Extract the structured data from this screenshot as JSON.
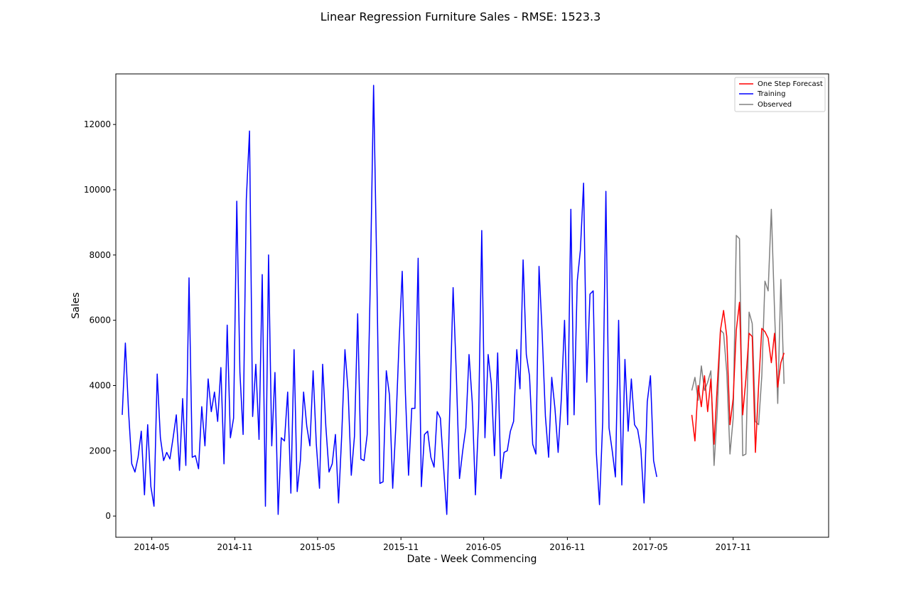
{
  "chart_data": {
    "type": "line",
    "title": "Linear Regression Furniture Sales - RMSE: 1523.3",
    "xlabel": "Date - Week Commencing",
    "ylabel": "Sales",
    "ylim": [
      -650,
      13550
    ],
    "xlim_weeks": [
      -12,
      212
    ],
    "yticks": [
      0,
      2000,
      4000,
      6000,
      8000,
      10000,
      12000
    ],
    "xticks": [
      {
        "label": "2014-05",
        "week": -0.7
      },
      {
        "label": "2014-11",
        "week": 25.4
      },
      {
        "label": "2015-05",
        "week": 51.4
      },
      {
        "label": "2015-11",
        "week": 77.6
      },
      {
        "label": "2016-05",
        "week": 103.6
      },
      {
        "label": "2016-11",
        "week": 129.9
      },
      {
        "label": "2017-05",
        "week": 155.9
      },
      {
        "label": "2017-11",
        "week": 182.0
      }
    ],
    "grid": false,
    "legend_position": "upper right",
    "series": [
      {
        "name": "One Step Forecast",
        "color": "#ff0000",
        "start_week": 169,
        "values": [
          3100,
          2300,
          4000,
          3350,
          4300,
          3200,
          4200,
          2200,
          4000,
          5700,
          6300,
          5500,
          2800,
          3600,
          5700,
          6550,
          3100,
          4200,
          5600,
          5500,
          1950,
          4000,
          5750,
          5650,
          5450,
          4700,
          5600,
          3950,
          4700,
          5000
        ]
      },
      {
        "name": "Training",
        "color": "#0000ff",
        "start_week": -10,
        "values": [
          3100,
          5300,
          3200,
          1600,
          1350,
          1800,
          2600,
          650,
          2800,
          900,
          300,
          4350,
          2400,
          1700,
          1950,
          1750,
          2400,
          3100,
          1400,
          3600,
          1550,
          7300,
          1800,
          1850,
          1450,
          3350,
          2150,
          4200,
          3200,
          3800,
          2900,
          4550,
          1600,
          5850,
          2400,
          3000,
          9650,
          4400,
          2500,
          9700,
          11800,
          3050,
          4650,
          2350,
          7400,
          300,
          8000,
          2150,
          4400,
          50,
          2400,
          2300,
          3800,
          700,
          5100,
          750,
          1700,
          3800,
          2750,
          2150,
          4450,
          2200,
          850,
          4650,
          2750,
          1350,
          1600,
          2500,
          400,
          2500,
          5100,
          3800,
          1250,
          2450,
          6200,
          1750,
          1700,
          2500,
          7300,
          13200,
          7500,
          1000,
          1050,
          4450,
          3700,
          850,
          2750,
          5300,
          7500,
          3750,
          1250,
          3300,
          3300,
          7900,
          900,
          2500,
          2600,
          1800,
          1500,
          3200,
          3000,
          1500,
          50,
          3500,
          7000,
          4350,
          1150,
          2000,
          2700,
          4950,
          3500,
          650,
          3000,
          8750,
          2400,
          4950,
          4050,
          1850,
          5000,
          1150,
          1950,
          2000,
          2600,
          2900,
          5100,
          3900,
          7850,
          4950,
          4300,
          2200,
          1900,
          7650,
          5550,
          3050,
          1800,
          4250,
          3300,
          1950,
          3600,
          6000,
          2800,
          9400,
          3100,
          7200,
          8150,
          10200,
          4100,
          6800,
          6900,
          1950,
          350,
          2900,
          9950,
          2700,
          2000,
          1200,
          6000,
          950,
          4800,
          2600,
          4200,
          2800,
          2650,
          2050,
          400,
          3500,
          4300,
          1700,
          1200
        ]
      },
      {
        "name": "Observed",
        "color": "#808080",
        "start_week": 169,
        "values": [
          3850,
          4250,
          3550,
          4600,
          3850,
          4100,
          4450,
          1550,
          3200,
          5700,
          5600,
          4400,
          1900,
          3000,
          8600,
          8500,
          1850,
          1900,
          6250,
          5900,
          2900,
          2800,
          4300,
          7200,
          6900,
          9400,
          6300,
          3450,
          7250,
          4050
        ]
      }
    ]
  }
}
